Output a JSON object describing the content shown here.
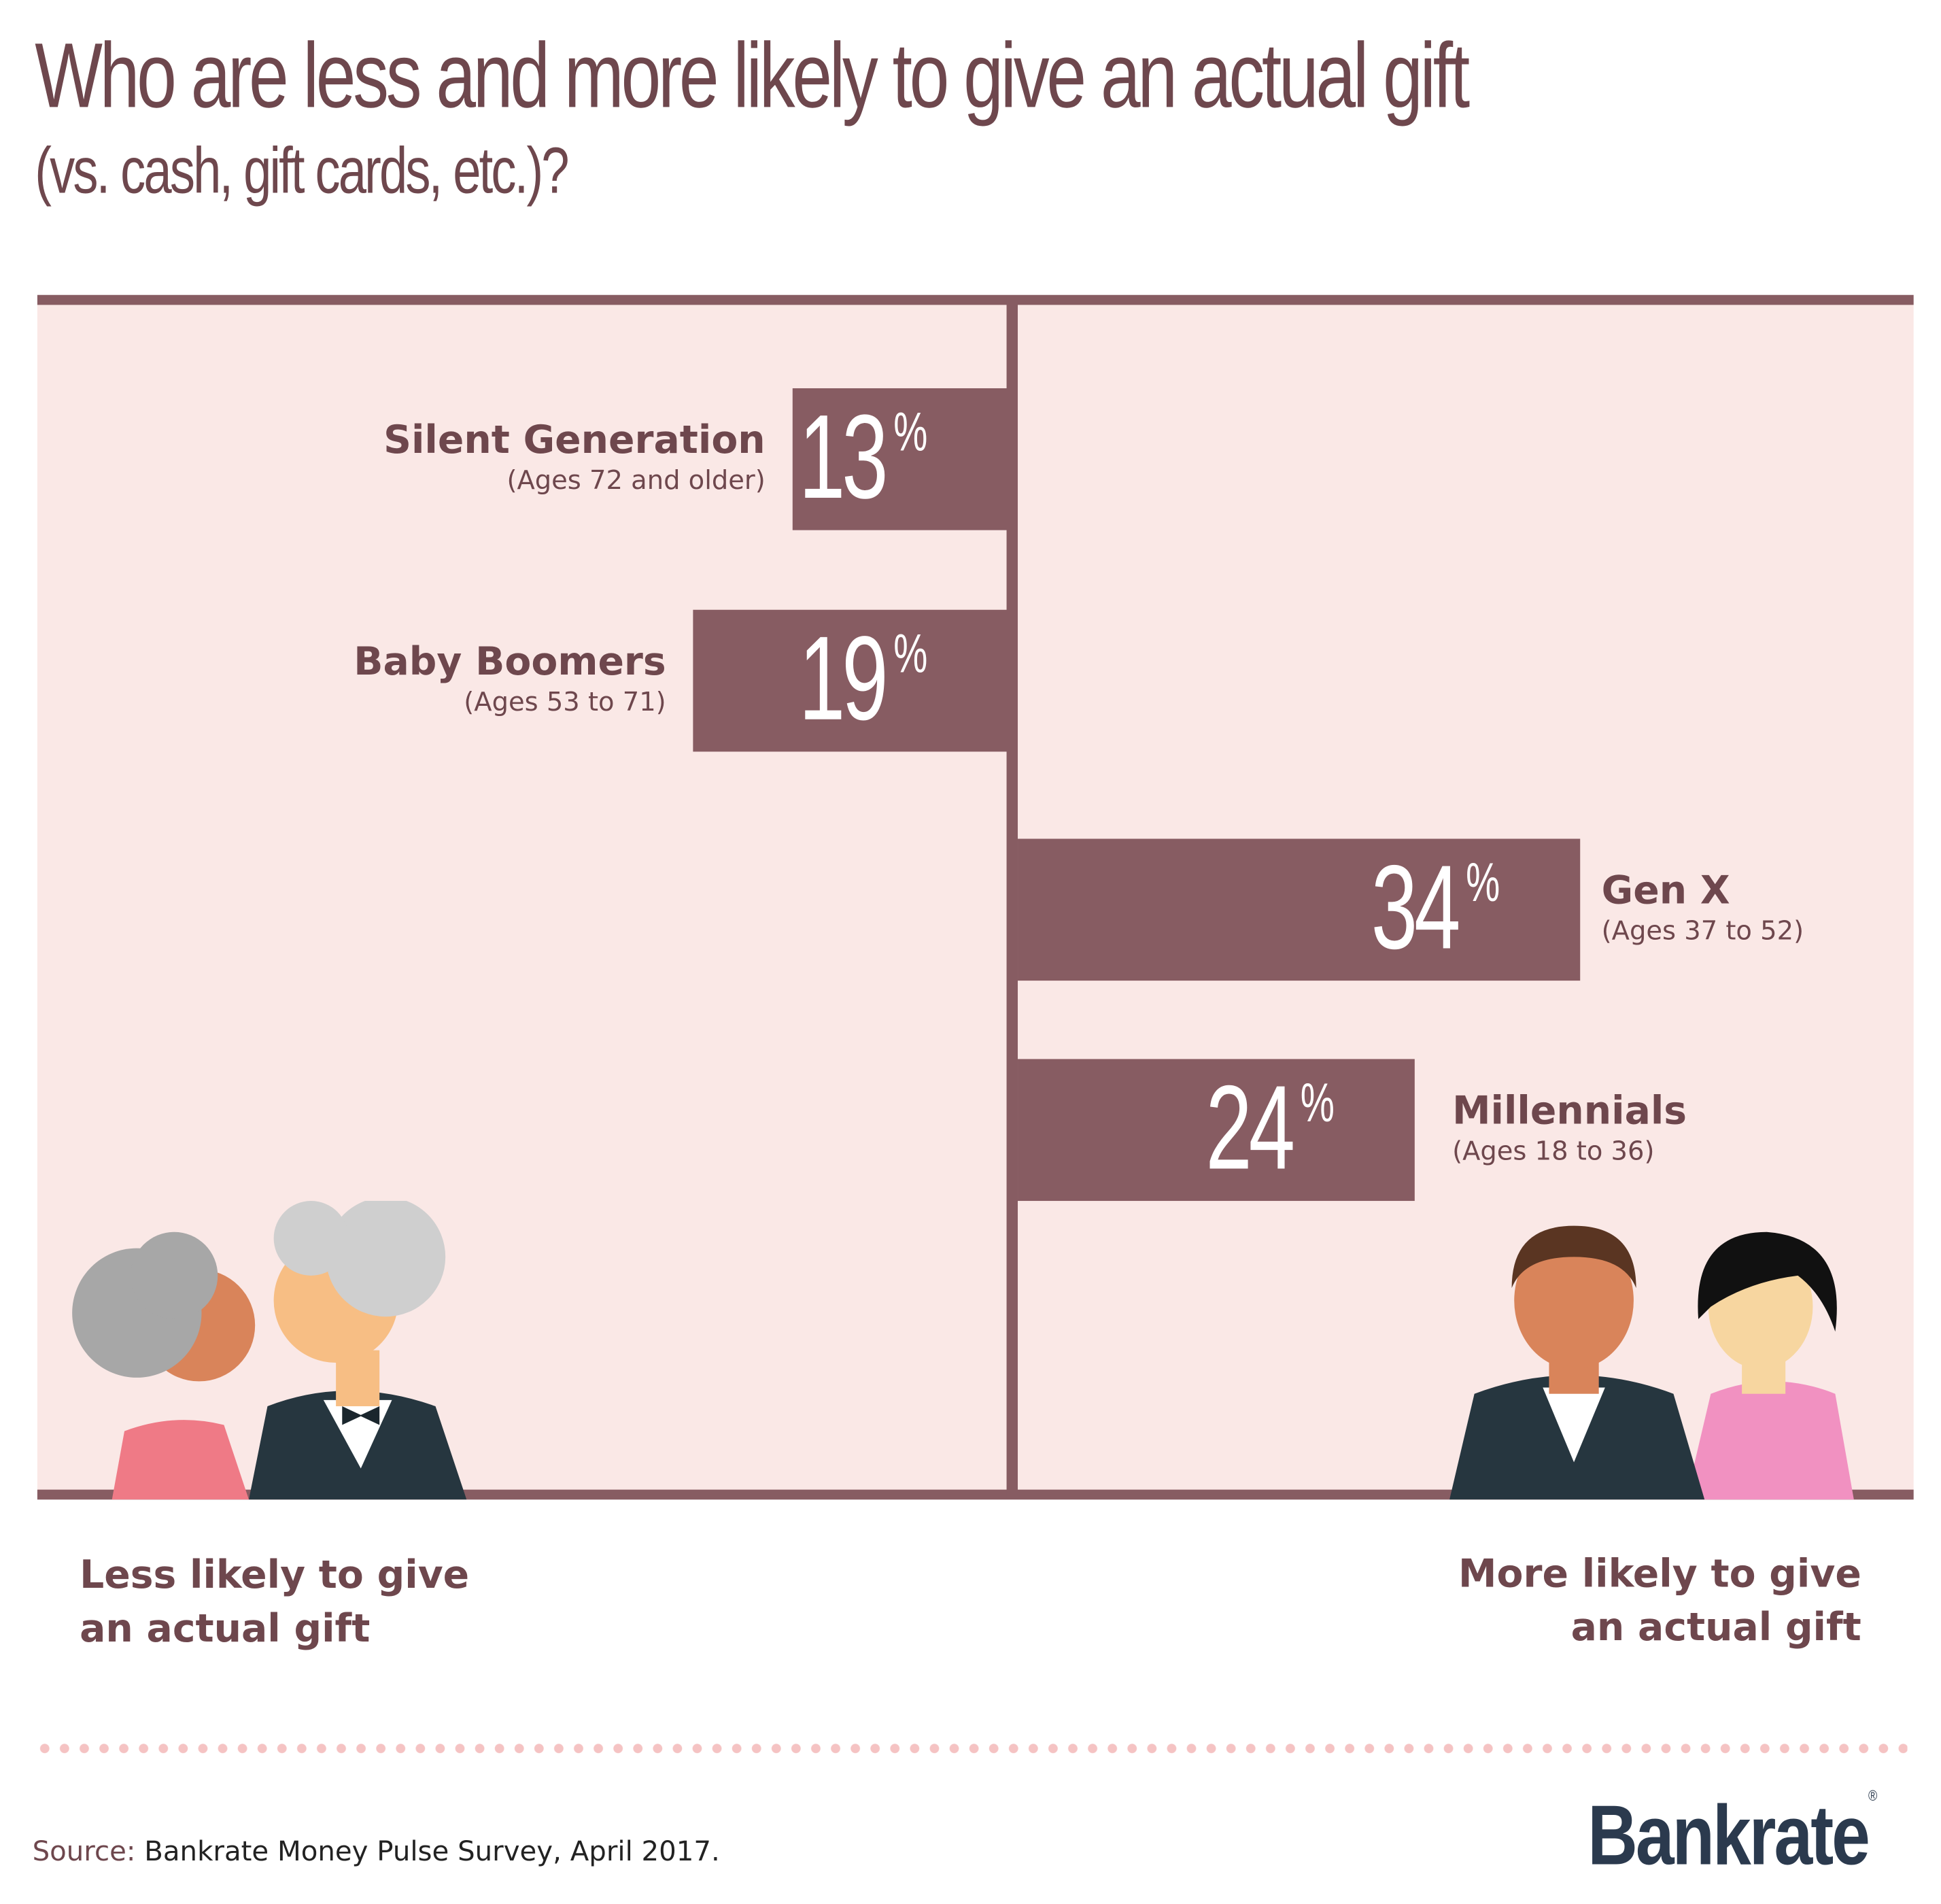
{
  "title": "Who are less and more likely to give an actual gift",
  "subtitle": "(vs. cash, gift cards, etc.)?",
  "chart_data": {
    "type": "bar",
    "orientation": "diverging-horizontal",
    "categories": [
      "Silent Generation",
      "Baby Boomers",
      "Gen X",
      "Millennials"
    ],
    "sublabels": [
      "(Ages 72 and older)",
      "(Ages 53 to 71)",
      "(Ages 37 to 52)",
      "(Ages 18 to 36)"
    ],
    "values": [
      13,
      19,
      34,
      24
    ],
    "value_labels": [
      "13",
      "19",
      "34",
      "24"
    ],
    "unit": "%",
    "sides": [
      "left",
      "left",
      "right",
      "right"
    ],
    "left_label": "Less likely to give an actual gift",
    "right_label": "More likely to give an actual gift"
  },
  "footer": {
    "left_line1": "Less likely to give",
    "left_line2": "an actual gift",
    "right_line1": "More likely to give",
    "right_line2": "an actual gift"
  },
  "source": {
    "key": "Source:",
    "text": "Bankrate Money Pulse Survey, April 2017."
  },
  "logo": "Bankrate",
  "colors": {
    "bar": "#875c62",
    "panel": "#fae8e6",
    "text": "#6e474d",
    "dots": "#f5c3c3",
    "logo": "#2b3a4e"
  }
}
